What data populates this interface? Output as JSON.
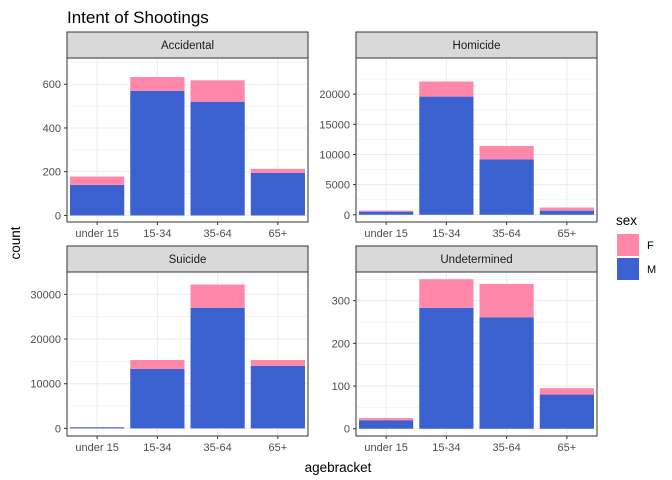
{
  "chart_data": {
    "type": "bar",
    "stacked": true,
    "title": "Intent of Shootings",
    "xlabel": "agebracket",
    "ylabel": "count",
    "categories": [
      "under 15",
      "15-34",
      "35-64",
      "65+"
    ],
    "legend": {
      "title": "sex",
      "placement": "right",
      "items": [
        "F",
        "M"
      ]
    },
    "colors": {
      "F": "#FF88AA",
      "M": "#3A61CF",
      "strip": "#D9D9D9",
      "grid": "#EBEBEB"
    },
    "grid": true,
    "panels": [
      {
        "name": "Accidental",
        "ylim": [
          -30,
          720
        ],
        "yticks": [
          0,
          200,
          400,
          600
        ],
        "series": [
          {
            "name": "M",
            "values": [
              140,
              570,
              520,
              195
            ]
          },
          {
            "name": "F",
            "values": [
              38,
              63,
              98,
              18
            ]
          }
        ]
      },
      {
        "name": "Homicide",
        "ylim": [
          -1200,
          26000
        ],
        "yticks": [
          0,
          5000,
          10000,
          15000,
          20000
        ],
        "series": [
          {
            "name": "M",
            "values": [
              520,
              19600,
              9200,
              680
            ]
          },
          {
            "name": "F",
            "values": [
              160,
              2500,
              2200,
              520
            ]
          }
        ]
      },
      {
        "name": "Suicide",
        "ylim": [
          -1700,
          35000
        ],
        "yticks": [
          0,
          10000,
          20000,
          30000
        ],
        "series": [
          {
            "name": "M",
            "values": [
              250,
              13300,
              27000,
              14000
            ]
          },
          {
            "name": "F",
            "values": [
              50,
              2000,
              5200,
              1300
            ]
          }
        ]
      },
      {
        "name": "Undetermined",
        "ylim": [
          -17,
          367
        ],
        "yticks": [
          0,
          100,
          200,
          300
        ],
        "series": [
          {
            "name": "M",
            "values": [
              20,
              283,
              261,
              80
            ]
          },
          {
            "name": "F",
            "values": [
              5,
              67,
              78,
              15
            ]
          }
        ]
      }
    ]
  }
}
